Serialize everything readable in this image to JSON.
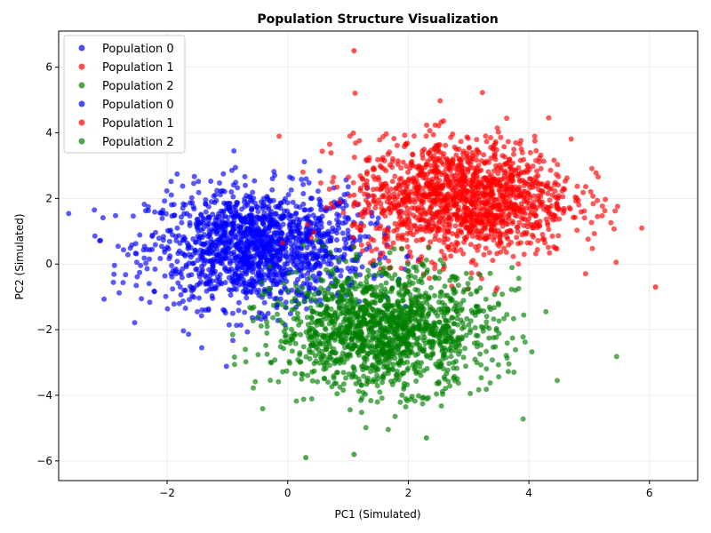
{
  "chart_data": {
    "type": "scatter",
    "title": "Population Structure Visualization",
    "xlabel": "PC1 (Simulated)",
    "ylabel": "PC2 (Simulated)",
    "xlim": [
      -3.8,
      6.8
    ],
    "ylim": [
      -6.6,
      7.1
    ],
    "xticks": [
      -2,
      0,
      2,
      4,
      6
    ],
    "yticks": [
      -6,
      -4,
      -2,
      0,
      2,
      4,
      6
    ],
    "grid": true,
    "legend_placement": "top-left",
    "legend": [
      "Population 0",
      "Population 1",
      "Population 2",
      "Population 0",
      "Population 1",
      "Population 2"
    ],
    "series": [
      {
        "name": "Population 0",
        "color": "#0000ff",
        "center": [
          -0.5,
          0.5
        ],
        "std": [
          0.9,
          0.9
        ]
      },
      {
        "name": "Population 1",
        "color": "#ff0000",
        "center": [
          2.9,
          2.0
        ],
        "std": [
          0.9,
          0.9
        ]
      },
      {
        "name": "Population 2",
        "color": "#008000",
        "center": [
          1.6,
          -2.0
        ],
        "std": [
          0.9,
          0.9
        ]
      }
    ],
    "outliers": [
      {
        "series": "Population 1",
        "x": 1.1,
        "y": 6.5
      },
      {
        "series": "Population 1",
        "x": 6.1,
        "y": -0.7
      },
      {
        "series": "Population 2",
        "x": 0.3,
        "y": -5.9
      },
      {
        "series": "Population 2",
        "x": 1.1,
        "y": -5.8
      },
      {
        "series": "Population 2",
        "x": 2.3,
        "y": -5.3
      }
    ]
  }
}
